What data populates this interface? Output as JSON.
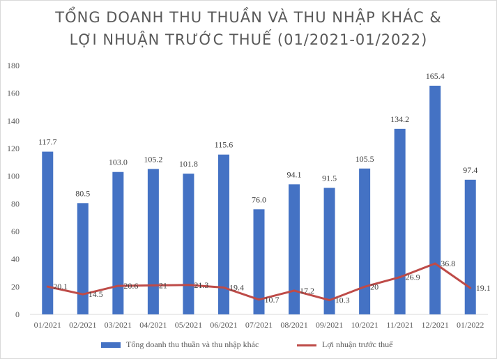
{
  "chart_data": {
    "type": "bar",
    "title_line1": "TỔNG DOANH THU THUẦN VÀ THU NHẬP KHÁC &",
    "title_line2": "LỢI NHUẬN TRƯỚC THUẾ (01/2021-01/2022)",
    "categories": [
      "01/2021",
      "02/2021",
      "03/2021",
      "04/2021",
      "05/2021",
      "06/2021",
      "07/2021",
      "08/2021",
      "09/2021",
      "10/2021",
      "11/2021",
      "12/2021",
      "01/2022"
    ],
    "series": [
      {
        "name": "Tổng doanh thu thuần và thu nhập khác",
        "type": "bar",
        "color": "#4472c4",
        "values": [
          117.7,
          80.5,
          103.0,
          105.2,
          101.8,
          115.6,
          76.0,
          94.1,
          91.5,
          105.5,
          134.2,
          165.4,
          97.4
        ],
        "labels": [
          "117.7",
          "80.5",
          "103.0",
          "105.2",
          "101.8",
          "115.6",
          "76.0",
          "94.1",
          "91.5",
          "105.5",
          "134.2",
          "165.4",
          "97.4"
        ]
      },
      {
        "name": "Lợi nhuận trước thuế",
        "type": "line",
        "color": "#be4b48",
        "values": [
          20.1,
          14.5,
          20.6,
          21,
          21.3,
          19.4,
          10.7,
          17.2,
          10.3,
          20,
          26.9,
          36.8,
          19.1
        ],
        "labels": [
          "20.1",
          "14.5",
          "20.6",
          "21",
          "21.3",
          "19.4",
          "10.7",
          "17.2",
          "10.3",
          "20",
          "26.9",
          "36.8",
          "19.1"
        ]
      }
    ],
    "ylim": [
      0,
      180
    ],
    "yticks": [
      "0",
      "20",
      "40",
      "60",
      "80",
      "100",
      "120",
      "140",
      "160",
      "180"
    ],
    "grid": false,
    "legend_position": "bottom"
  }
}
